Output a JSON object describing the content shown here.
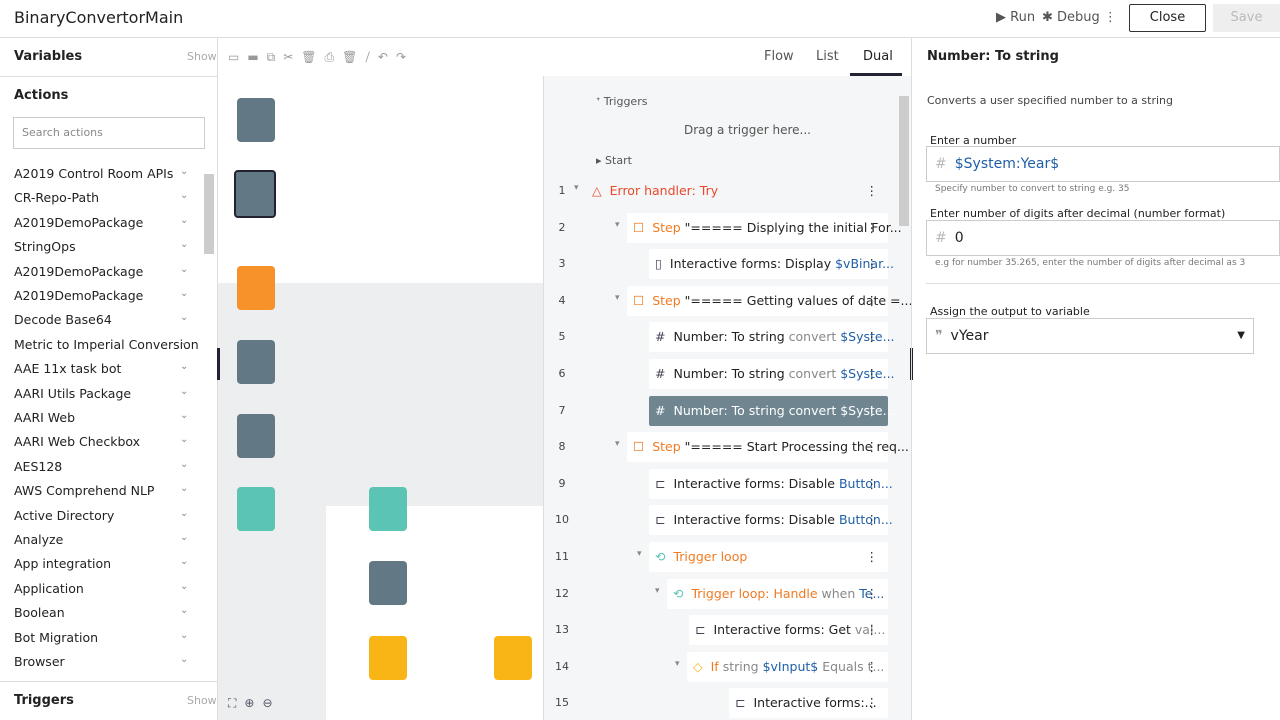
{
  "header": {
    "title": "BinaryConvertorMain",
    "run": "Run",
    "debug": "Debug",
    "close": "Close",
    "save": "Save"
  },
  "left": {
    "variables": "Variables",
    "variables_show": "Show",
    "actions": "Actions",
    "search_placeholder": "Search actions",
    "items": [
      "A2019 Control Room APIs",
      "CR-Repo-Path",
      "A2019DemoPackage",
      "StringOps",
      "A2019DemoPackage",
      "A2019DemoPackage",
      "Decode Base64",
      "Metric to Imperial Conversion",
      "AAE 11x task bot",
      "AARI Utils Package",
      "AARI Web",
      "AARI Web Checkbox",
      "AES128",
      "AWS Comprehend NLP",
      "Active Directory",
      "Analyze",
      "App integration",
      "Application",
      "Boolean",
      "Bot Migration",
      "Browser"
    ],
    "triggers": "Triggers",
    "triggers_show": "Show"
  },
  "views": [
    "Flow",
    "List",
    "Dual"
  ],
  "list": {
    "triggers": "Triggers",
    "drag": "Drag a trigger here...",
    "start": "Start",
    "rows": [
      {
        "line": "1",
        "parts": [
          "Error handler: Try"
        ]
      },
      {
        "line": "2",
        "parts": [
          "Step",
          " \"===== Displying the initial For..."
        ]
      },
      {
        "line": "3",
        "parts": [
          "Interactive forms: Display ",
          "$vBinar..."
        ]
      },
      {
        "line": "4",
        "parts": [
          "Step",
          " \"===== Getting values of date =..."
        ]
      },
      {
        "line": "5",
        "parts": [
          "Number: To string",
          " convert ",
          "$Syste..."
        ]
      },
      {
        "line": "6",
        "parts": [
          "Number: To string",
          " convert ",
          "$Syste..."
        ]
      },
      {
        "line": "7",
        "parts": [
          "Number: To string",
          " convert ",
          "$Syste..."
        ]
      },
      {
        "line": "8",
        "parts": [
          "Step",
          " \"===== Start Processing the req..."
        ]
      },
      {
        "line": "9",
        "parts": [
          "Interactive forms: Disable ",
          "Button..."
        ]
      },
      {
        "line": "10",
        "parts": [
          "Interactive forms: Disable ",
          "Button..."
        ]
      },
      {
        "line": "11",
        "parts": [
          "Trigger loop"
        ]
      },
      {
        "line": "12",
        "parts": [
          "Trigger loop: Handle",
          " when ",
          "Te..."
        ]
      },
      {
        "line": "13",
        "parts": [
          "Interactive forms: Get ",
          "val..."
        ]
      },
      {
        "line": "14",
        "parts": [
          "If",
          " string ",
          "$vInput$",
          " Equals t..."
        ]
      },
      {
        "line": "15",
        "parts": [
          "Interactive forms:..."
        ]
      }
    ]
  },
  "panel": {
    "title": "Number: To string",
    "description": "Converts a user specified number to a string",
    "field1_label": "Enter a number",
    "field1_value": "$System:Year$",
    "field1_hint": "Specify number to convert to string e.g. 35",
    "field2_label": "Enter number of digits after decimal (number format)",
    "field2_value": "0",
    "field2_hint": "e.g for number 35.265, enter the number of digits after decimal as 3",
    "field3_label": "Assign the output to variable",
    "field3_value": "vYear"
  }
}
